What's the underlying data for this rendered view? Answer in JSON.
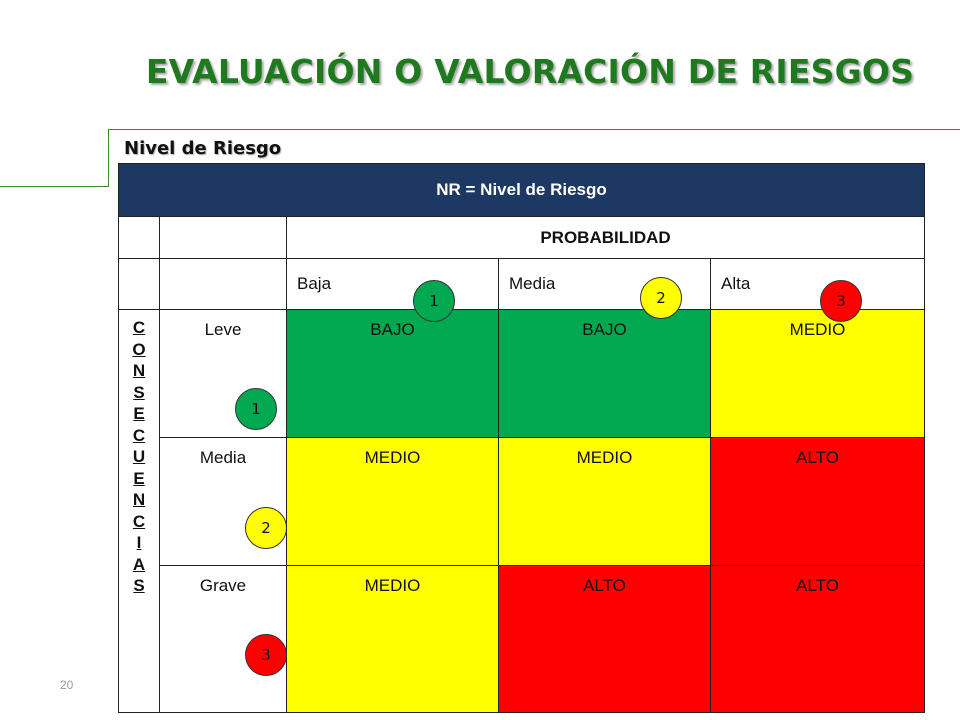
{
  "title": "EVALUACIÓN O VALORACIÓN DE RIESGOS",
  "subtitle": "Nivel de Riesgo",
  "table": {
    "header": "NR = Nivel de Riesgo",
    "probability_label": "PROBABILIDAD",
    "probability_levels": [
      "Baja",
      "Media",
      "Alta"
    ],
    "consequences_letters": [
      "C",
      "O",
      "N",
      "S",
      "E",
      "C",
      "U",
      "E",
      "N",
      "C",
      "I",
      "A",
      "S"
    ],
    "rows": [
      {
        "severity": "Leve",
        "cells": [
          "BAJO",
          "BAJO",
          "MEDIO"
        ]
      },
      {
        "severity": "Media",
        "cells": [
          "MEDIO",
          "MEDIO",
          "ALTO"
        ]
      },
      {
        "severity": "Grave",
        "cells": [
          "MEDIO",
          "ALTO",
          "ALTO"
        ]
      }
    ]
  },
  "probability_badges": [
    "1",
    "2",
    "3"
  ],
  "severity_badges": [
    "1",
    "2",
    "3"
  ],
  "colors": {
    "title": "#1f7a1f",
    "header_bg": "#1e3864",
    "low": "#00a84f",
    "medium": "#ffff00",
    "high": "#ff0000"
  },
  "page_number": "20"
}
